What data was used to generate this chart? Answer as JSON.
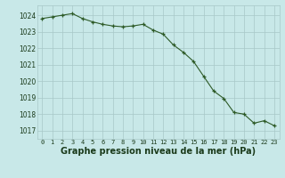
{
  "x": [
    0,
    1,
    2,
    3,
    4,
    5,
    6,
    7,
    8,
    9,
    10,
    11,
    12,
    13,
    14,
    15,
    16,
    17,
    18,
    19,
    20,
    21,
    22,
    23
  ],
  "y": [
    1023.8,
    1023.9,
    1024.0,
    1024.1,
    1023.8,
    1023.6,
    1023.45,
    1023.35,
    1023.3,
    1023.35,
    1023.45,
    1023.1,
    1022.85,
    1022.2,
    1021.75,
    1021.2,
    1020.3,
    1019.4,
    1018.95,
    1018.1,
    1018.0,
    1017.45,
    1017.6,
    1017.3
  ],
  "line_color": "#2d5a27",
  "marker": "+",
  "bg_color": "#c8e8e8",
  "grid_color": "#a8c8c8",
  "xlabel": "Graphe pression niveau de la mer (hPa)",
  "xlabel_fontsize": 7,
  "ylabel_ticks": [
    1017,
    1018,
    1019,
    1020,
    1021,
    1022,
    1023,
    1024
  ],
  "xtick_labels": [
    "0",
    "1",
    "2",
    "3",
    "4",
    "5",
    "6",
    "7",
    "8",
    "9",
    "10",
    "11",
    "12",
    "13",
    "14",
    "15",
    "16",
    "17",
    "18",
    "19",
    "20",
    "21",
    "22",
    "23"
  ],
  "ylim": [
    1016.5,
    1024.6
  ],
  "xlim": [
    -0.5,
    23.5
  ],
  "text_color": "#1a3a1a",
  "line_width": 0.8,
  "marker_size": 3,
  "tick_fontsize": 5,
  "ytick_fontsize": 5.5
}
